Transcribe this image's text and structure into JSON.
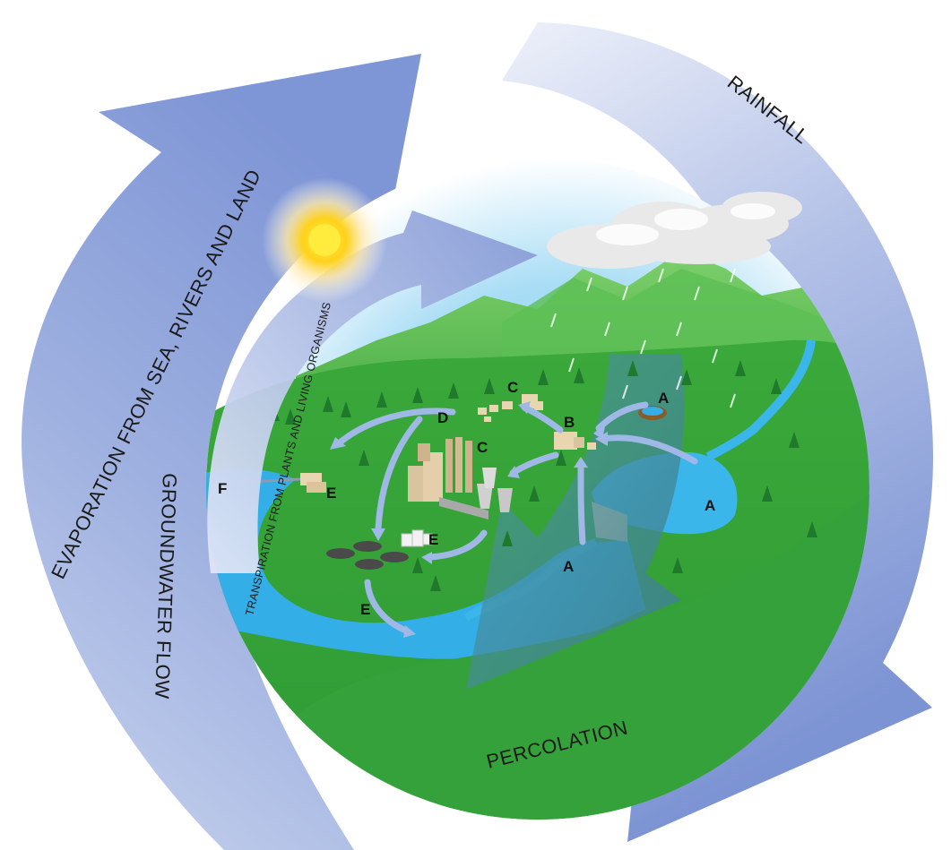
{
  "diagram": {
    "labels": {
      "rainfall": "RAINFALL",
      "evaporation": "EVAPORATION FROM SEA, RIVERS AND LAND",
      "transpiration": "TRANSPIRATION FROM PLANTS AND LIVING ORGANISMS",
      "groundwater": "GROUNDWATER FLOW",
      "percolation": "PERCOLATION"
    },
    "markers": {
      "a_reservoir": "A",
      "a_lake": "A",
      "a_river": "A",
      "b_treatment": "B",
      "c_town": "C",
      "c_industry": "C",
      "d_distribution": "D",
      "e_coast": "E",
      "e_storage": "E",
      "e_wastewater": "E",
      "e_outflow": "E",
      "f_outfall": "F"
    },
    "colors": {
      "arrow": "#8b9fd6",
      "land": "#3aa83a",
      "water": "#33aee6",
      "sun": "#ffd21a"
    }
  }
}
